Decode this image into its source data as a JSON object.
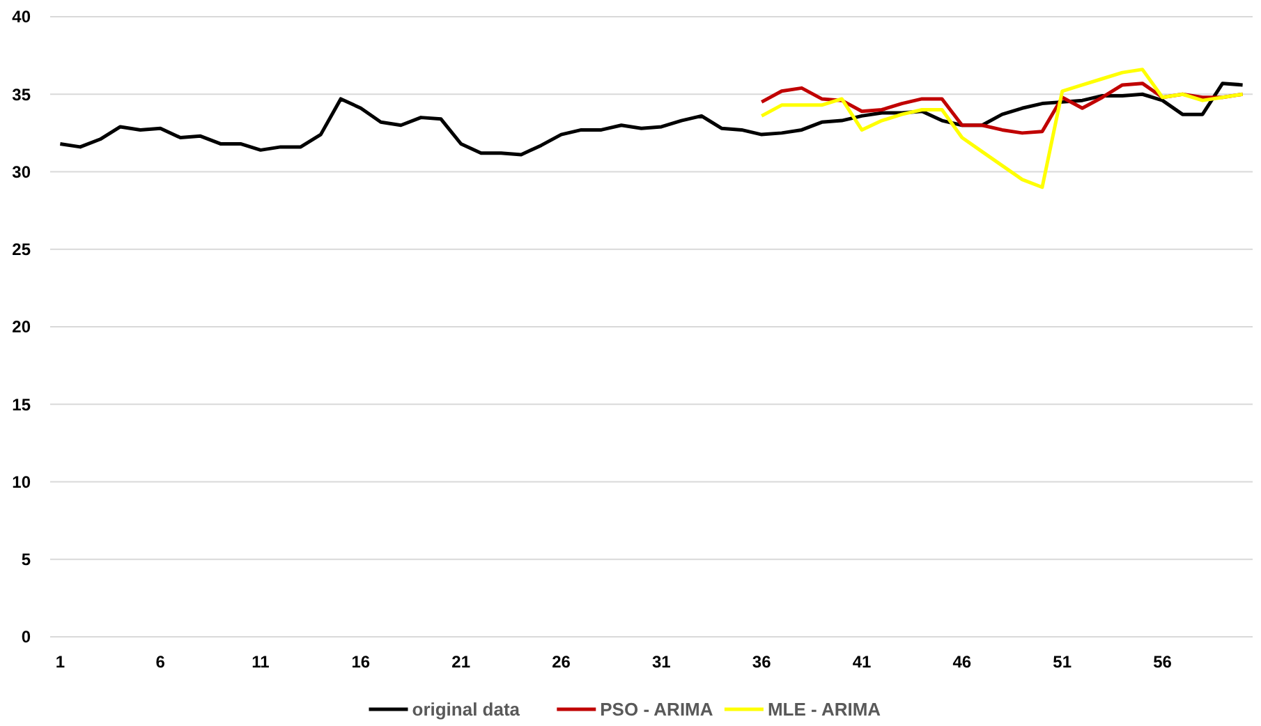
{
  "chart_data": {
    "type": "line",
    "x": [
      1,
      2,
      3,
      4,
      5,
      6,
      7,
      8,
      9,
      10,
      11,
      12,
      13,
      14,
      15,
      16,
      17,
      18,
      19,
      20,
      21,
      22,
      23,
      24,
      25,
      26,
      27,
      28,
      29,
      30,
      31,
      32,
      33,
      34,
      35,
      36,
      37,
      38,
      39,
      40,
      41,
      42,
      43,
      44,
      45,
      46,
      47,
      48,
      49,
      50,
      51,
      52,
      53,
      54,
      55,
      56,
      57,
      58,
      59,
      60
    ],
    "xlim": [
      0.5,
      60.5
    ],
    "xticks": [
      1,
      6,
      11,
      16,
      21,
      26,
      31,
      36,
      41,
      46,
      51,
      56
    ],
    "series": [
      {
        "name": "original data",
        "color": "#000000",
        "values": [
          31.8,
          31.6,
          32.1,
          32.9,
          32.7,
          32.8,
          32.2,
          32.3,
          31.8,
          31.8,
          31.4,
          31.6,
          31.6,
          32.4,
          34.7,
          34.1,
          33.2,
          33.0,
          33.5,
          33.4,
          31.8,
          31.2,
          31.2,
          31.1,
          31.7,
          32.4,
          32.7,
          32.7,
          33.0,
          32.8,
          32.9,
          33.3,
          33.6,
          32.8,
          32.7,
          32.4,
          32.5,
          32.7,
          33.2,
          33.3,
          33.6,
          33.8,
          33.8,
          33.9,
          33.3,
          33.0,
          33.0,
          33.7,
          34.1,
          34.4,
          34.5,
          34.6,
          34.9,
          34.9,
          35.0,
          34.6,
          33.7,
          33.7,
          35.7,
          35.6
        ]
      },
      {
        "name": "PSO - ARIMA",
        "color": "#c00000",
        "values": [
          null,
          null,
          null,
          null,
          null,
          null,
          null,
          null,
          null,
          null,
          null,
          null,
          null,
          null,
          null,
          null,
          null,
          null,
          null,
          null,
          null,
          null,
          null,
          null,
          null,
          null,
          null,
          null,
          null,
          null,
          null,
          null,
          null,
          null,
          null,
          34.5,
          35.2,
          35.4,
          34.7,
          34.6,
          33.9,
          34.0,
          34.4,
          34.7,
          34.7,
          33.0,
          33.0,
          32.7,
          32.5,
          32.6,
          34.8,
          34.1,
          34.8,
          35.6,
          35.7,
          34.8,
          35.0,
          34.8,
          34.8,
          35.0
        ]
      },
      {
        "name": "MLE - ARIMA",
        "color": "#ffff00",
        "values": [
          null,
          null,
          null,
          null,
          null,
          null,
          null,
          null,
          null,
          null,
          null,
          null,
          null,
          null,
          null,
          null,
          null,
          null,
          null,
          null,
          null,
          null,
          null,
          null,
          null,
          null,
          null,
          null,
          null,
          null,
          null,
          null,
          null,
          null,
          null,
          33.6,
          34.3,
          34.3,
          34.3,
          34.7,
          32.7,
          33.3,
          33.7,
          34.0,
          34.0,
          32.2,
          31.3,
          30.4,
          29.5,
          29.0,
          35.2,
          35.6,
          36.0,
          36.4,
          36.6,
          34.8,
          35.0,
          34.6,
          34.8,
          35.0
        ]
      }
    ],
    "ylim": [
      0,
      40
    ],
    "yticks": [
      0,
      5,
      10,
      15,
      20,
      25,
      30,
      35,
      40
    ],
    "grid": "y",
    "legend": "bottom",
    "marker": "none",
    "line_style": "solid"
  }
}
